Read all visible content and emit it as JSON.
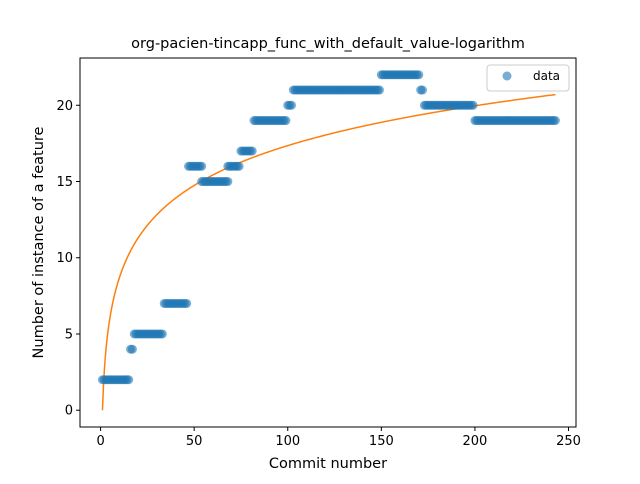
{
  "chart_data": {
    "type": "scatter",
    "title": "org-pacien-tincapp_func_with_default_value-logarithm",
    "xlabel": "Commit number",
    "ylabel": "Number of instance of a feature",
    "xlim": [
      -11,
      254
    ],
    "ylim": [
      -1.1,
      23.1
    ],
    "xticks": [
      0,
      50,
      100,
      150,
      200,
      250
    ],
    "yticks": [
      0,
      5,
      10,
      15,
      20
    ],
    "grid": false,
    "legend": {
      "placement": "top-right",
      "entries": [
        "data"
      ]
    },
    "colors": {
      "data": "#1f77b4",
      "fit": "#ff7f0e"
    },
    "scatter_runs": [
      {
        "x_from": 1,
        "x_to": 15,
        "y": 2
      },
      {
        "x_from": 16,
        "x_to": 17,
        "y": 4
      },
      {
        "x_from": 18,
        "x_to": 33,
        "y": 5
      },
      {
        "x_from": 34,
        "x_to": 46,
        "y": 7
      },
      {
        "x_from": 47,
        "x_to": 54,
        "y": 16
      },
      {
        "x_from": 54,
        "x_to": 68,
        "y": 15
      },
      {
        "x_from": 68,
        "x_to": 74,
        "y": 16
      },
      {
        "x_from": 75,
        "x_to": 81,
        "y": 17
      },
      {
        "x_from": 82,
        "x_to": 99,
        "y": 19
      },
      {
        "x_from": 100,
        "x_to": 102,
        "y": 20
      },
      {
        "x_from": 103,
        "x_to": 149,
        "y": 21
      },
      {
        "x_from": 150,
        "x_to": 170,
        "y": 22
      },
      {
        "x_from": 171,
        "x_to": 172,
        "y": 21
      },
      {
        "x_from": 173,
        "x_to": 199,
        "y": 20
      },
      {
        "x_from": 200,
        "x_to": 243,
        "y": 19
      }
    ],
    "fit": {
      "model": "logarithmic",
      "x_from": 1,
      "x_to": 243,
      "y_at_start": 0.0,
      "y_at_end": 20.7
    }
  }
}
